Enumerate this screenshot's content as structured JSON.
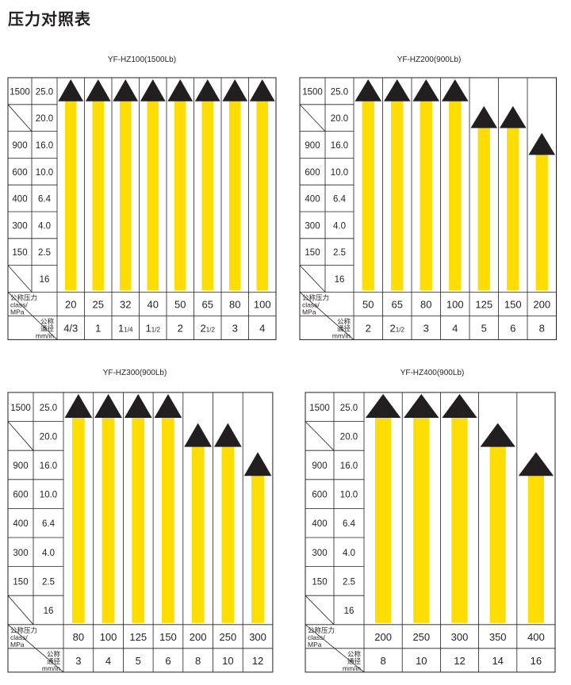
{
  "page": {
    "title": "压力对照表"
  },
  "axis": {
    "class_labels": [
      "1500",
      "",
      "900",
      "600",
      "400",
      "300",
      "150",
      ""
    ],
    "mpa_labels": [
      "25.0",
      "20.0",
      "16.0",
      "10.0",
      "6.4",
      "4.0",
      "2.5",
      "16"
    ],
    "header_pressure_line1": "公称压力",
    "header_pressure_line2": "class/",
    "header_pressure_line3": "MPa",
    "header_size_line1": "公称",
    "header_size_line2": "通径",
    "header_size_line3": "mm/in"
  },
  "colors": {
    "bar": "#FFDD00",
    "arrow": "#231F20",
    "grid": "#231F20"
  },
  "tables": [
    {
      "title": "YF-HZ100(1500Lb)",
      "mm": [
        "20",
        "25",
        "32",
        "40",
        "50",
        "65",
        "80",
        "100"
      ],
      "inch": [
        "4/3",
        "1",
        "11/4",
        "11/2",
        "2",
        "21/2",
        "3",
        "4"
      ],
      "max_pressure_mpa": [
        "25.0",
        "25.0",
        "25.0",
        "25.0",
        "25.0",
        "25.0",
        "25.0",
        "25.0"
      ]
    },
    {
      "title": "YF-HZ200(900Lb)",
      "mm": [
        "50",
        "65",
        "80",
        "100",
        "125",
        "150",
        "200"
      ],
      "inch": [
        "2",
        "21/2",
        "3",
        "4",
        "5",
        "6",
        "8"
      ],
      "max_pressure_mpa": [
        "25.0",
        "25.0",
        "25.0",
        "25.0",
        "20.0",
        "20.0",
        "16.0"
      ]
    },
    {
      "title": "YF-HZ300(900Lb)",
      "mm": [
        "80",
        "100",
        "125",
        "150",
        "200",
        "250",
        "300"
      ],
      "inch": [
        "3",
        "4",
        "5",
        "6",
        "8",
        "10",
        "12"
      ],
      "max_pressure_mpa": [
        "25.0",
        "25.0",
        "25.0",
        "25.0",
        "20.0",
        "20.0",
        "16.0"
      ]
    },
    {
      "title": "YF-HZ400(900Lb)",
      "mm": [
        "200",
        "250",
        "300",
        "350",
        "400"
      ],
      "inch": [
        "8",
        "10",
        "12",
        "14",
        "16"
      ],
      "max_pressure_mpa": [
        "25.0",
        "25.0",
        "25.0",
        "20.0",
        "16.0"
      ]
    }
  ]
}
